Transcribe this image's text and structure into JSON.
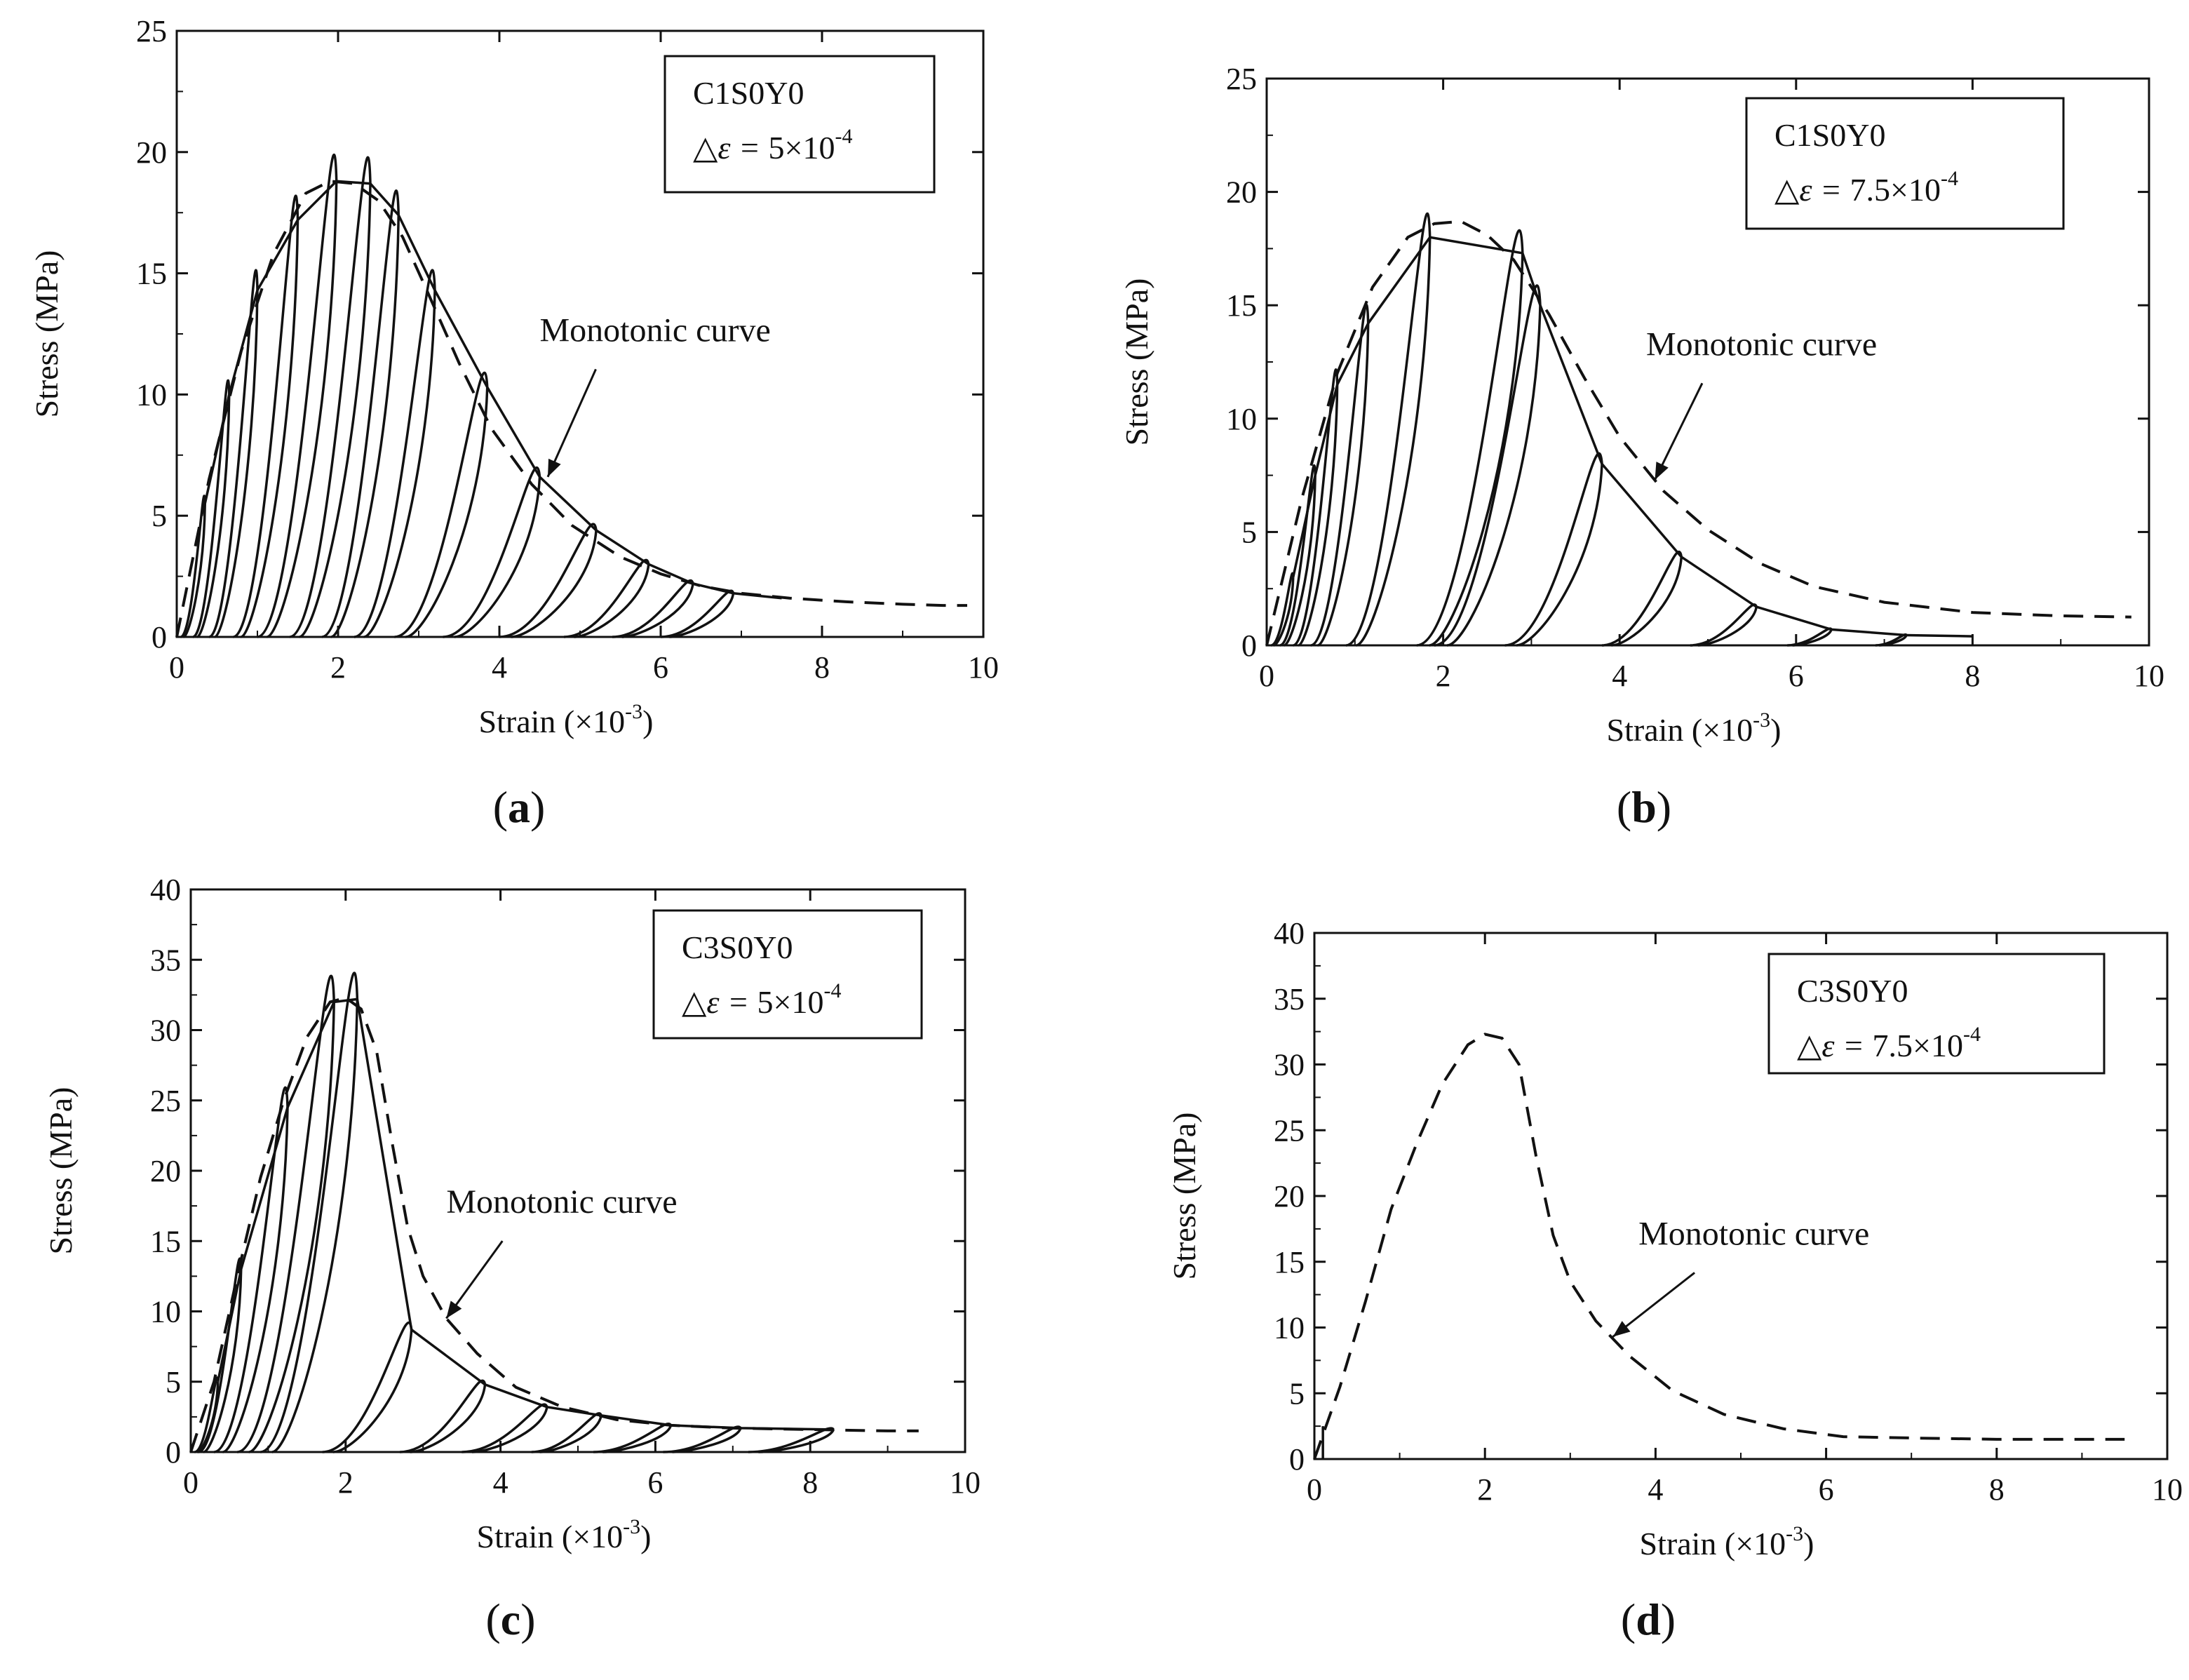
{
  "chart_data": [
    {
      "panel": "a",
      "type": "line",
      "caption_letter": "a",
      "legend": {
        "specimen": "C1S0Y0",
        "delta_prefix": "△ε = ",
        "delta_value": "5×10",
        "delta_exp": "-4"
      },
      "xlabel": "Strain  (×10",
      "xlabel_exp": "-3",
      "xlabel_suffix": ")",
      "ylabel": "Stress (MPa)",
      "xlim": [
        0,
        10
      ],
      "ylim": [
        0,
        25
      ],
      "xticks": [
        0,
        2,
        4,
        6,
        8,
        10
      ],
      "yticks": [
        0,
        5,
        10,
        15,
        20,
        25
      ],
      "xticklabels": [
        "0",
        "2",
        "4",
        "6",
        "8",
        "10"
      ],
      "yticklabels": [
        "0",
        "5",
        "10",
        "15",
        "20",
        "25"
      ],
      "annotation": {
        "text": "Monotonic curve",
        "point": [
          4.6,
          6.6
        ],
        "text_at": [
          4.5,
          12.2
        ]
      },
      "monotonic": {
        "x": [
          0,
          0.4,
          0.8,
          1.2,
          1.6,
          1.9,
          2.2,
          2.5,
          2.8,
          3.1,
          3.5,
          3.9,
          4.4,
          4.9,
          5.5,
          6.0,
          6.5,
          7.0,
          7.6,
          8.3,
          9.0,
          9.5,
          9.8
        ],
        "y": [
          0,
          6.5,
          11.8,
          15.8,
          18.3,
          18.8,
          18.7,
          18.0,
          16.5,
          14.3,
          11.3,
          8.6,
          6.3,
          4.6,
          3.3,
          2.6,
          2.1,
          1.8,
          1.6,
          1.45,
          1.35,
          1.3,
          1.3
        ]
      },
      "cycles": [
        {
          "peak": [
            0.35,
            5.5
          ],
          "res": 0.05
        },
        {
          "peak": [
            0.65,
            10.0
          ],
          "res": 0.2
        },
        {
          "peak": [
            1.0,
            14.3
          ],
          "res": 0.4
        },
        {
          "peak": [
            1.5,
            17.2
          ],
          "res": 0.7
        },
        {
          "peak": [
            1.98,
            18.8
          ],
          "res": 1.0
        },
        {
          "peak": [
            2.4,
            18.7
          ],
          "res": 1.4
        },
        {
          "peak": [
            2.75,
            17.4
          ],
          "res": 1.8
        },
        {
          "peak": [
            3.2,
            14.3
          ],
          "res": 2.2
        },
        {
          "peak": [
            3.85,
            10.3
          ],
          "res": 2.7
        },
        {
          "peak": [
            4.5,
            6.6
          ],
          "res": 3.3
        },
        {
          "peak": [
            5.2,
            4.4
          ],
          "res": 4.0
        },
        {
          "peak": [
            5.85,
            3.0
          ],
          "res": 4.8
        },
        {
          "peak": [
            6.4,
            2.2
          ],
          "res": 5.4
        },
        {
          "peak": [
            6.9,
            1.8
          ],
          "res": 6.0
        }
      ],
      "tail": {
        "x": [
          6.9,
          7.5
        ],
        "y": [
          1.8,
          1.6
        ]
      }
    },
    {
      "panel": "b",
      "type": "line",
      "caption_letter": "b",
      "legend": {
        "specimen": "C1S0Y0",
        "delta_prefix": "△ε = ",
        "delta_value": "7.5×10",
        "delta_exp": "-4"
      },
      "xlabel": "Strain  (×10",
      "xlabel_exp": "-3",
      "xlabel_suffix": ")",
      "ylabel": "Stress (MPa)",
      "xlim": [
        0,
        10
      ],
      "ylim": [
        0,
        25
      ],
      "xticks": [
        0,
        2,
        4,
        6,
        8,
        10
      ],
      "yticks": [
        0,
        5,
        10,
        15,
        20,
        25
      ],
      "xticklabels": [
        "0",
        "2",
        "4",
        "6",
        "8",
        "10"
      ],
      "yticklabels": [
        "0",
        "5",
        "10",
        "15",
        "20",
        "25"
      ],
      "annotation": {
        "text": "Monotonic curve",
        "point": [
          4.4,
          7.3
        ],
        "text_at": [
          4.3,
          12.8
        ]
      },
      "monotonic": {
        "x": [
          0,
          0.4,
          0.8,
          1.2,
          1.6,
          1.9,
          2.2,
          2.5,
          2.8,
          3.2,
          3.6,
          4.0,
          4.5,
          5.0,
          5.6,
          6.2,
          7.0,
          8.0,
          9.0,
          9.8
        ],
        "y": [
          0,
          6.5,
          12.0,
          15.8,
          18.0,
          18.6,
          18.7,
          18.1,
          17.0,
          14.6,
          11.8,
          9.2,
          6.8,
          5.1,
          3.6,
          2.6,
          1.9,
          1.45,
          1.3,
          1.25
        ]
      },
      "cycles": [
        {
          "peak": [
            0.3,
            3.0
          ],
          "res": 0.05
        },
        {
          "peak": [
            0.55,
            7.5
          ],
          "res": 0.15
        },
        {
          "peak": [
            0.8,
            11.5
          ],
          "res": 0.3
        },
        {
          "peak": [
            1.15,
            14.2
          ],
          "res": 0.5
        },
        {
          "peak": [
            1.85,
            18.0
          ],
          "res": 0.9
        },
        {
          "peak": [
            2.9,
            17.3
          ],
          "res": 1.7
        },
        {
          "peak": [
            3.1,
            15.0
          ],
          "res": 1.9
        },
        {
          "peak": [
            3.8,
            8.0
          ],
          "res": 2.7
        },
        {
          "peak": [
            4.7,
            3.9
          ],
          "res": 3.8
        },
        {
          "peak": [
            5.55,
            1.7
          ],
          "res": 4.8
        },
        {
          "peak": [
            6.4,
            0.7
          ],
          "res": 5.9
        },
        {
          "peak": [
            7.25,
            0.45
          ],
          "res": 6.9
        }
      ],
      "tail": {
        "x": [
          7.25,
          8.0
        ],
        "y": [
          0.45,
          0.4
        ]
      }
    },
    {
      "panel": "c",
      "type": "line",
      "caption_letter": "c",
      "legend": {
        "specimen": "C3S0Y0",
        "delta_prefix": "△ε = ",
        "delta_value": "5×10",
        "delta_exp": "-4"
      },
      "xlabel": "Strain  (×10",
      "xlabel_exp": "-3",
      "xlabel_suffix": ")",
      "ylabel": "Stress (MPa)",
      "xlim": [
        0,
        10
      ],
      "ylim": [
        0,
        40
      ],
      "xticks": [
        0,
        2,
        4,
        6,
        8,
        10
      ],
      "yticks": [
        0,
        5,
        10,
        15,
        20,
        25,
        30,
        35,
        40
      ],
      "xticklabels": [
        "0",
        "2",
        "4",
        "6",
        "8",
        "10"
      ],
      "yticklabels": [
        "0",
        "5",
        "10",
        "15",
        "20",
        "25",
        "30",
        "35",
        "40"
      ],
      "annotation": {
        "text": "Monotonic curve",
        "point": [
          3.3,
          9.5
        ],
        "text_at": [
          3.3,
          17.0
        ]
      },
      "monotonic": {
        "x": [
          0,
          0.3,
          0.6,
          0.9,
          1.2,
          1.5,
          1.8,
          2.0,
          2.2,
          2.4,
          2.6,
          2.8,
          3.0,
          3.3,
          3.7,
          4.2,
          4.8,
          5.5,
          6.2,
          7.0,
          8.0,
          9.0,
          9.4
        ],
        "y": [
          0,
          5,
          12.5,
          19.5,
          25.0,
          29.5,
          32.0,
          32.3,
          31.5,
          28.5,
          22.0,
          16.0,
          12.5,
          9.5,
          7.0,
          4.6,
          3.2,
          2.3,
          1.9,
          1.7,
          1.6,
          1.5,
          1.5
        ]
      },
      "cycles": [
        {
          "peak": [
            0.35,
            5.0
          ],
          "res": 0.05
        },
        {
          "peak": [
            0.65,
            13.0
          ],
          "res": 0.1
        },
        {
          "peak": [
            1.25,
            24.5
          ],
          "res": 0.3
        },
        {
          "peak": [
            1.85,
            32.0
          ],
          "res": 0.6
        },
        {
          "peak": [
            2.15,
            32.2
          ],
          "res": 0.9
        },
        {
          "peak": [
            2.85,
            8.7
          ],
          "res": 1.7
        },
        {
          "peak": [
            3.8,
            4.8
          ],
          "res": 2.7
        },
        {
          "peak": [
            4.6,
            3.2
          ],
          "res": 3.5
        },
        {
          "peak": [
            5.3,
            2.6
          ],
          "res": 4.4
        },
        {
          "peak": [
            6.2,
            1.9
          ],
          "res": 5.2
        },
        {
          "peak": [
            7.1,
            1.7
          ],
          "res": 6.1
        },
        {
          "peak": [
            8.3,
            1.6
          ],
          "res": 7.2
        }
      ],
      "tail": {
        "x": [
          8.3,
          8.3
        ],
        "y": [
          1.6,
          1.6
        ]
      }
    },
    {
      "panel": "d",
      "type": "line",
      "caption_letter": "d",
      "legend": {
        "specimen": "C3S0Y0",
        "delta_prefix": "△ε = ",
        "delta_value": "7.5×10",
        "delta_exp": "-4"
      },
      "xlabel": "Strain  (×10",
      "xlabel_exp": "-3",
      "xlabel_suffix": ")",
      "ylabel": "Stress (MPa)",
      "xlim": [
        0,
        10
      ],
      "ylim": [
        0,
        40
      ],
      "xticks": [
        0,
        2,
        4,
        6,
        8,
        10
      ],
      "yticks": [
        0,
        5,
        10,
        15,
        20,
        25,
        30,
        35,
        40
      ],
      "xticklabels": [
        "0",
        "2",
        "4",
        "6",
        "8",
        "10"
      ],
      "yticklabels": [
        "0",
        "5",
        "10",
        "15",
        "20",
        "25",
        "30",
        "35",
        "40"
      ],
      "annotation": {
        "text": "Monotonic curve",
        "point": [
          3.5,
          9.3
        ],
        "text_at": [
          3.8,
          16.3
        ]
      },
      "monotonic": {
        "x": [
          0,
          0.3,
          0.6,
          0.9,
          1.2,
          1.5,
          1.8,
          2.0,
          2.2,
          2.4,
          2.6,
          2.8,
          3.0,
          3.3,
          3.7,
          4.2,
          4.8,
          5.5,
          6.2,
          7.0,
          8.0,
          9.0,
          9.5
        ],
        "y": [
          0,
          5.5,
          12.0,
          19.0,
          24.0,
          28.5,
          31.5,
          32.3,
          32.0,
          30.0,
          23.0,
          17.0,
          13.5,
          10.5,
          7.8,
          5.2,
          3.4,
          2.3,
          1.7,
          1.6,
          1.5,
          1.5,
          1.5
        ]
      },
      "cycles": [],
      "tail": {
        "x": [
          0.1,
          0.1
        ],
        "y": [
          0,
          2.5
        ]
      }
    }
  ]
}
